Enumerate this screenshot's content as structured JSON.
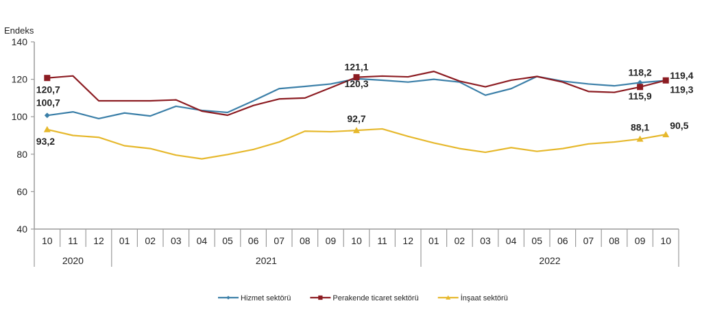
{
  "chart_data": {
    "type": "line",
    "ylabel": "Endeks",
    "ylim": [
      40,
      140
    ],
    "yticks": [
      40,
      60,
      80,
      100,
      120,
      140
    ],
    "grid": false,
    "legend_position": "bottom",
    "categories": [
      "10",
      "11",
      "12",
      "01",
      "02",
      "03",
      "04",
      "05",
      "06",
      "07",
      "08",
      "09",
      "10",
      "11",
      "12",
      "01",
      "02",
      "03",
      "04",
      "05",
      "06",
      "07",
      "08",
      "09",
      "10"
    ],
    "years": [
      {
        "label": "2020",
        "count": 3
      },
      {
        "label": "2021",
        "count": 12
      },
      {
        "label": "2022",
        "count": 10
      }
    ],
    "series": [
      {
        "name": "Hizmet sektörü",
        "color": "#3b7fa8",
        "marker": "diamond",
        "values": [
          100.7,
          102.6,
          99.0,
          102.0,
          100.4,
          105.6,
          103.4,
          102.3,
          108.5,
          115.0,
          116.2,
          117.5,
          120.3,
          119.5,
          118.5,
          120.0,
          118.5,
          111.5,
          115.0,
          121.5,
          119.0,
          117.5,
          116.5,
          118.2,
          119.3
        ],
        "labels": [
          {
            "index": 0,
            "text": "100,7"
          },
          {
            "index": 12,
            "text": "120,3"
          },
          {
            "index": 23,
            "text": "118,2"
          },
          {
            "index": 24,
            "text": "119,3"
          }
        ]
      },
      {
        "name": "Perakende ticaret sektörü",
        "color": "#8c1c22",
        "marker": "square",
        "values": [
          120.7,
          121.8,
          108.5,
          108.5,
          108.5,
          109.0,
          103.0,
          100.8,
          106.0,
          109.5,
          110.0,
          115.5,
          121.1,
          121.7,
          121.3,
          124.2,
          119.0,
          116.0,
          119.5,
          121.5,
          118.5,
          113.5,
          113.0,
          115.9,
          119.4
        ],
        "labels": [
          {
            "index": 0,
            "text": "120,7"
          },
          {
            "index": 12,
            "text": "121,1"
          },
          {
            "index": 23,
            "text": "115,9"
          },
          {
            "index": 24,
            "text": "119,4"
          }
        ]
      },
      {
        "name": "İnşaat sektörü",
        "color": "#e6b82c",
        "marker": "triangle",
        "values": [
          93.2,
          90.0,
          89.0,
          84.5,
          83.0,
          79.5,
          77.5,
          79.8,
          82.5,
          86.5,
          92.3,
          92.0,
          92.7,
          93.5,
          89.5,
          86.0,
          83.0,
          81.0,
          83.5,
          81.5,
          83.0,
          85.5,
          86.5,
          88.1,
          90.5
        ],
        "labels": [
          {
            "index": 0,
            "text": "93,2"
          },
          {
            "index": 12,
            "text": "92,7"
          },
          {
            "index": 23,
            "text": "88,1"
          },
          {
            "index": 24,
            "text": "90,5"
          }
        ]
      }
    ]
  }
}
